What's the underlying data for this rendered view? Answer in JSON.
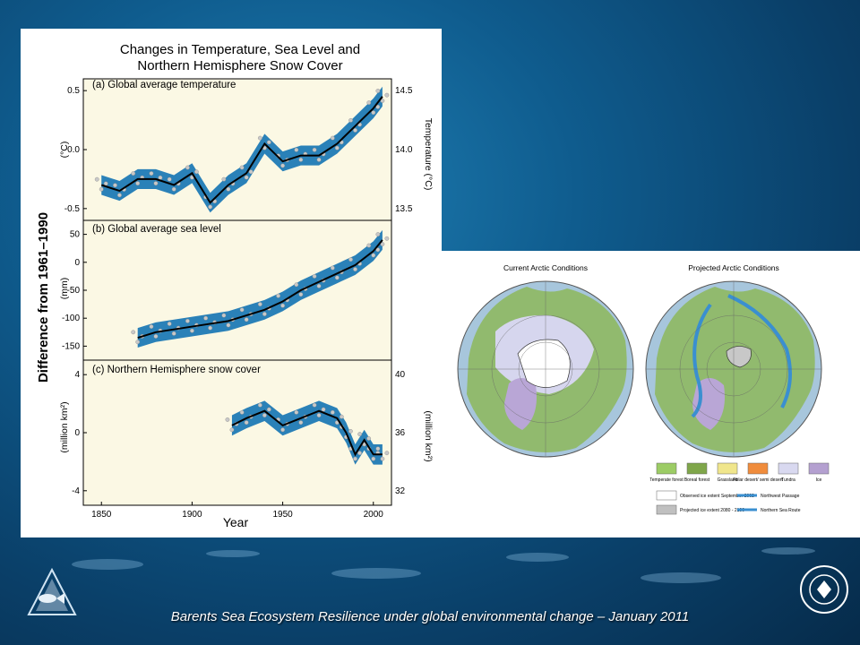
{
  "colors": {
    "panel_bg": "#fbf8e4",
    "band": "#1f7ab5",
    "line": "#000000",
    "circles": "#c8c8c8",
    "ice": "#ffffff",
    "projected": "#c0c0c0",
    "route": "#3a8fd0"
  },
  "icons": {
    "left_logo": "fish-triangle-logo",
    "right_logo": "university-seal-logo"
  },
  "figure_left": {
    "title_line1": "Changes in Temperature, Sea Level and",
    "title_line2": "Northern Hemisphere Snow Cover",
    "ylabel_shared": "Difference from 1961–1990",
    "xlabel": "Year",
    "panel_a": {
      "label": "(a) Global average temperature",
      "unit_left": "(°C)",
      "unit_right": "Temperature (°C)"
    },
    "panel_b": {
      "label": "(b) Global average sea level",
      "unit_left": "(mm)"
    },
    "panel_c": {
      "label": "(c) Northern Hemisphere snow cover",
      "unit_left": "(million km²)",
      "unit_right": "(million km²)"
    }
  },
  "figure_right": {
    "title_current": "Current Arctic Conditions",
    "title_projected": "Projected Arctic Conditions",
    "legend": [
      "Temperate forest",
      "Boreal forest",
      "Grassland",
      "Polar desert/ semi desert",
      "Tundra",
      "Ice"
    ],
    "legend_colors": [
      "#9ccc65",
      "#7fa64a",
      "#f0e68c",
      "#f08c3c",
      "#d9d9f0",
      "#b4a0d0"
    ],
    "ice_legend": [
      "Observed ice extent September 2002",
      "Projected ice extent 2080 - 2100"
    ],
    "route_legend": [
      "Northwest Passage",
      "Northern Sea Route"
    ]
  },
  "footer": {
    "text": "Barents Sea Ecosystem Resilience under global environmental change – January 2011"
  },
  "chart_data": [
    {
      "type": "line",
      "title": "(a) Global average temperature",
      "ylabel": "(°C)",
      "ylim": [
        -0.6,
        0.6
      ],
      "x": [
        1850,
        1860,
        1870,
        1880,
        1890,
        1900,
        1910,
        1920,
        1930,
        1940,
        1950,
        1960,
        1970,
        1980,
        1990,
        2000,
        2005
      ],
      "series": [
        {
          "values": [
            -0.3,
            -0.35,
            -0.25,
            -0.25,
            -0.3,
            -0.2,
            -0.45,
            -0.3,
            -0.2,
            0.05,
            -0.1,
            -0.05,
            -0.05,
            0.05,
            0.2,
            0.35,
            0.45
          ]
        }
      ],
      "yticks": [
        -0.5,
        0.0,
        0.5
      ],
      "right_ticks": [
        13.5,
        14.0,
        14.5
      ]
    },
    {
      "type": "line",
      "title": "(b) Global average sea level",
      "ylabel": "(mm)",
      "ylim": [
        -175,
        75
      ],
      "x": [
        1870,
        1880,
        1890,
        1900,
        1910,
        1920,
        1930,
        1940,
        1950,
        1960,
        1970,
        1980,
        1990,
        2000,
        2005
      ],
      "series": [
        {
          "values": [
            -135,
            -125,
            -120,
            -115,
            -110,
            -105,
            -95,
            -85,
            -70,
            -50,
            -35,
            -20,
            -5,
            20,
            40
          ]
        }
      ],
      "yticks": [
        -150,
        -100,
        -50,
        0,
        50
      ]
    },
    {
      "type": "line",
      "title": "(c) Northern Hemisphere snow cover",
      "ylabel": "(million km²)",
      "ylim": [
        -5,
        5
      ],
      "x": [
        1922,
        1930,
        1940,
        1950,
        1960,
        1970,
        1980,
        1985,
        1990,
        1995,
        2000,
        2005
      ],
      "series": [
        {
          "values": [
            0.5,
            1,
            1.5,
            0.5,
            1,
            1.5,
            1,
            0,
            -1.5,
            -0.5,
            -1.5,
            -1.5
          ]
        }
      ],
      "yticks": [
        -4,
        0,
        4
      ],
      "right_ticks": [
        32,
        36,
        40
      ],
      "xticks": [
        1850,
        1900,
        1950,
        2000
      ]
    }
  ]
}
